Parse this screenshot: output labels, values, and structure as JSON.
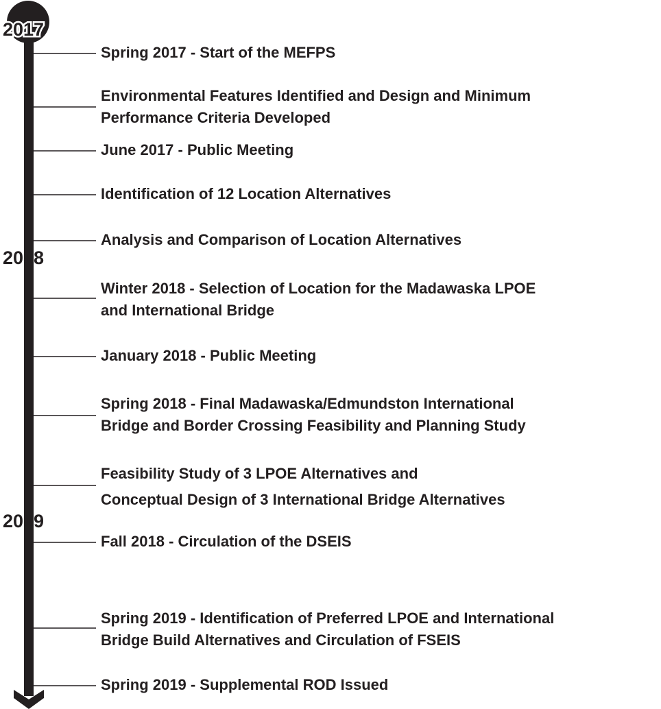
{
  "years": [
    {
      "label": "2017"
    },
    {
      "label": "2018"
    },
    {
      "label": "2019"
    }
  ],
  "events": [
    {
      "lines": [
        "Spring 2017 - Start of the MEFPS"
      ]
    },
    {
      "lines": [
        "Environmental Features Identified and Design and Minimum",
        "Performance Criteria Developed"
      ]
    },
    {
      "lines": [
        "June 2017 - Public Meeting"
      ]
    },
    {
      "lines": [
        "Identification of 12 Location Alternatives"
      ]
    },
    {
      "lines": [
        "Analysis and Comparison of Location Alternatives"
      ]
    },
    {
      "lines": [
        "Winter 2018 - Selection of Location for the Madawaska LPOE",
        "and International Bridge"
      ]
    },
    {
      "lines": [
        "January 2018 - Public Meeting"
      ]
    },
    {
      "lines": [
        "Spring 2018 - Final Madawaska/Edmundston International",
        "Bridge and Border Crossing Feasibility and Planning Study"
      ]
    },
    {
      "lines": [
        "Feasibility Study of 3 LPOE Alternatives and",
        "Conceptual Design of 3 International Bridge Alternatives"
      ]
    },
    {
      "lines": [
        "Fall 2018 - Circulation of the DSEIS"
      ]
    },
    {
      "lines": [
        "Spring 2019 - Identification of Preferred LPOE and International",
        "Bridge Build Alternatives and Circulation of FSEIS"
      ]
    },
    {
      "lines": [
        "Spring 2019 - Supplemental ROD Issued"
      ]
    }
  ]
}
